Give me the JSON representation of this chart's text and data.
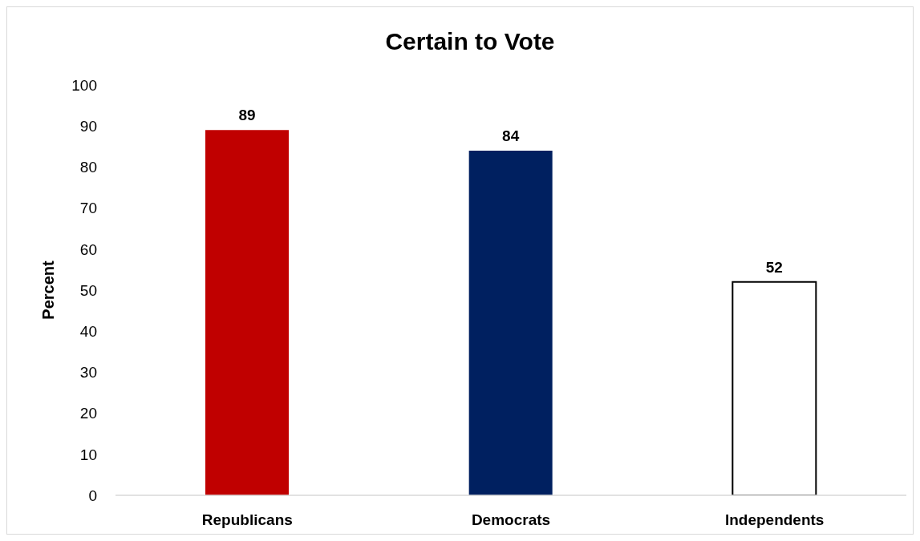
{
  "chart_data": {
    "type": "bar",
    "title": "Certain to Vote",
    "ylabel": "Percent",
    "categories": [
      "Republicans",
      "Democrats",
      "Independents"
    ],
    "values": [
      89,
      84,
      52
    ],
    "colors": [
      "#c00000",
      "#002060",
      "#ffffff"
    ],
    "ylim": [
      0,
      100
    ],
    "yticks": [
      0,
      10,
      20,
      30,
      40,
      50,
      60,
      70,
      80,
      90,
      100
    ],
    "data_labels": true
  }
}
